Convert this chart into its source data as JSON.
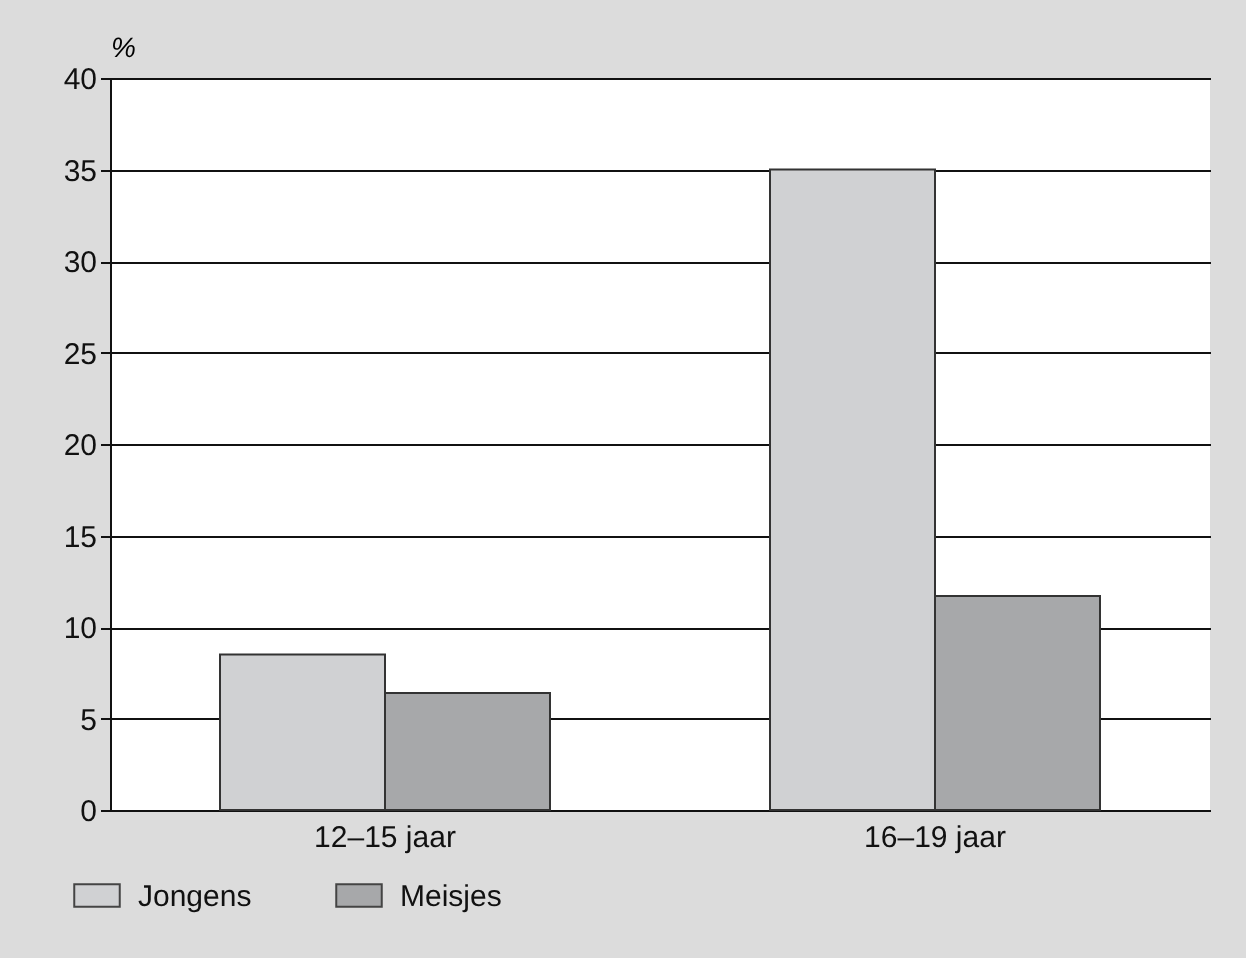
{
  "chart_data": {
    "type": "bar",
    "ylabel": "%",
    "categories": [
      "12–15 jaar",
      "16–19 jaar"
    ],
    "series": [
      {
        "name": "Jongens",
        "color": "#d0d1d3",
        "values": [
          8.5,
          35.0
        ]
      },
      {
        "name": "Meisjes",
        "color": "#a7a8aa",
        "values": [
          6.4,
          11.7
        ]
      }
    ],
    "ylim": [
      0,
      40
    ],
    "yticks": [
      0,
      5,
      10,
      15,
      20,
      25,
      30,
      35,
      40
    ],
    "grid": "y",
    "legend": "bottom left"
  }
}
